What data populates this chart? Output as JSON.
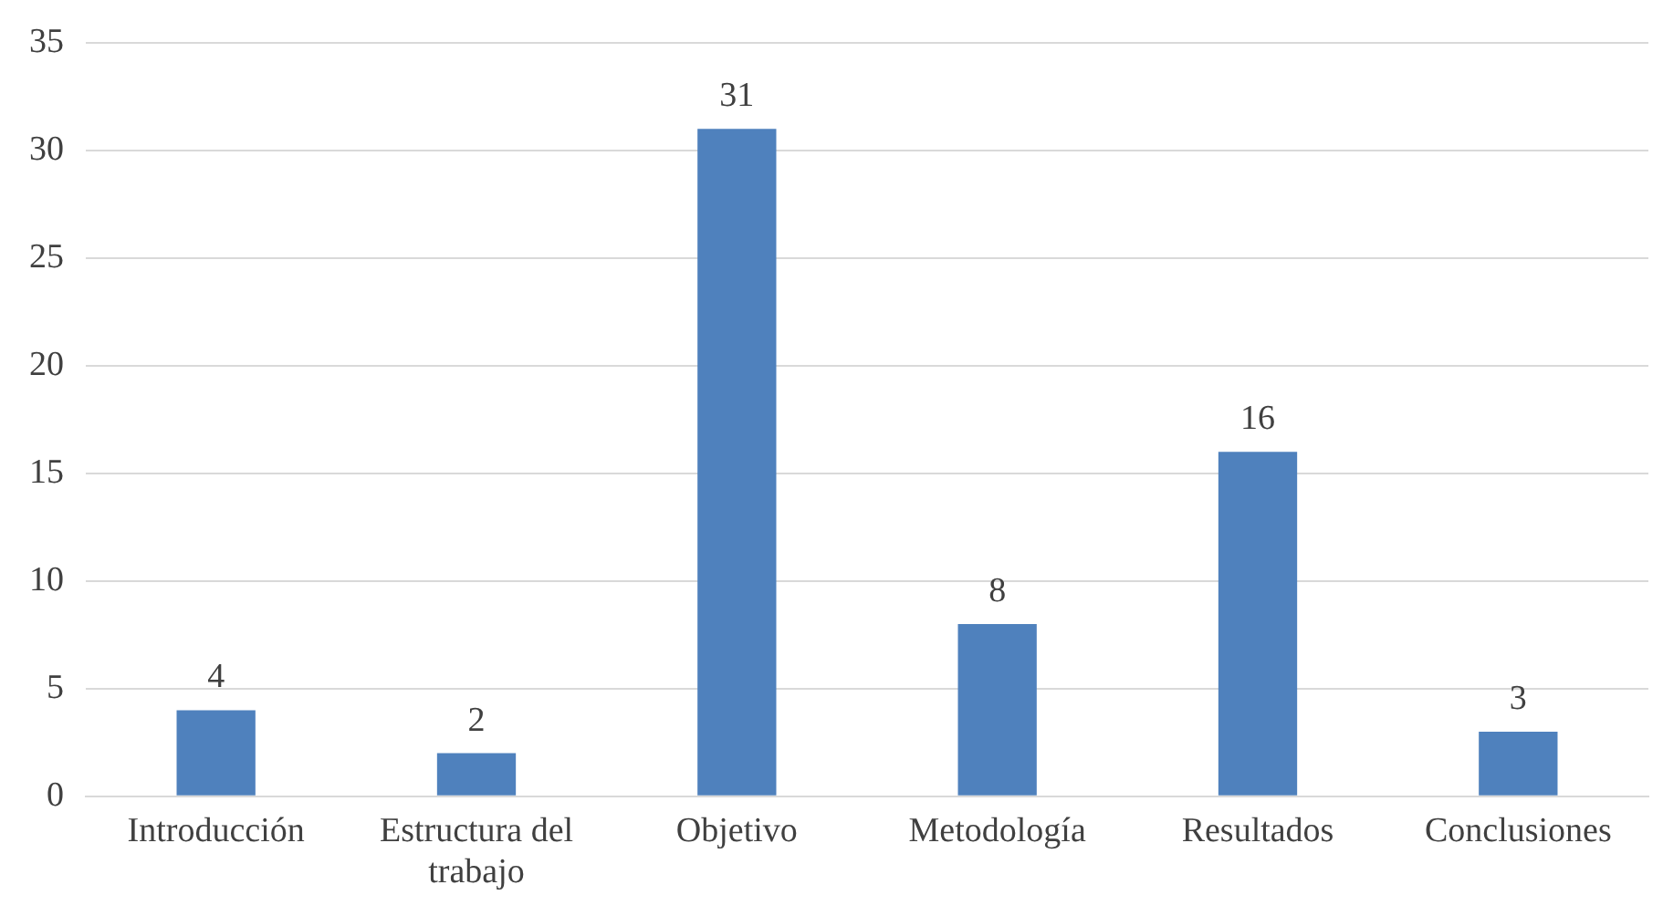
{
  "chart_data": {
    "type": "bar",
    "categories": [
      "Introducción",
      "Estructura del trabajo",
      "Objetivo",
      "Metodología",
      "Resultados",
      "Conclusiones"
    ],
    "values": [
      4,
      2,
      31,
      8,
      16,
      3
    ],
    "color": "#4f81bd",
    "ylim": [
      0,
      35
    ],
    "yticks": [
      0,
      5,
      10,
      15,
      20,
      25,
      30,
      35
    ],
    "grid": "y",
    "data_labels": true,
    "legend": false
  }
}
